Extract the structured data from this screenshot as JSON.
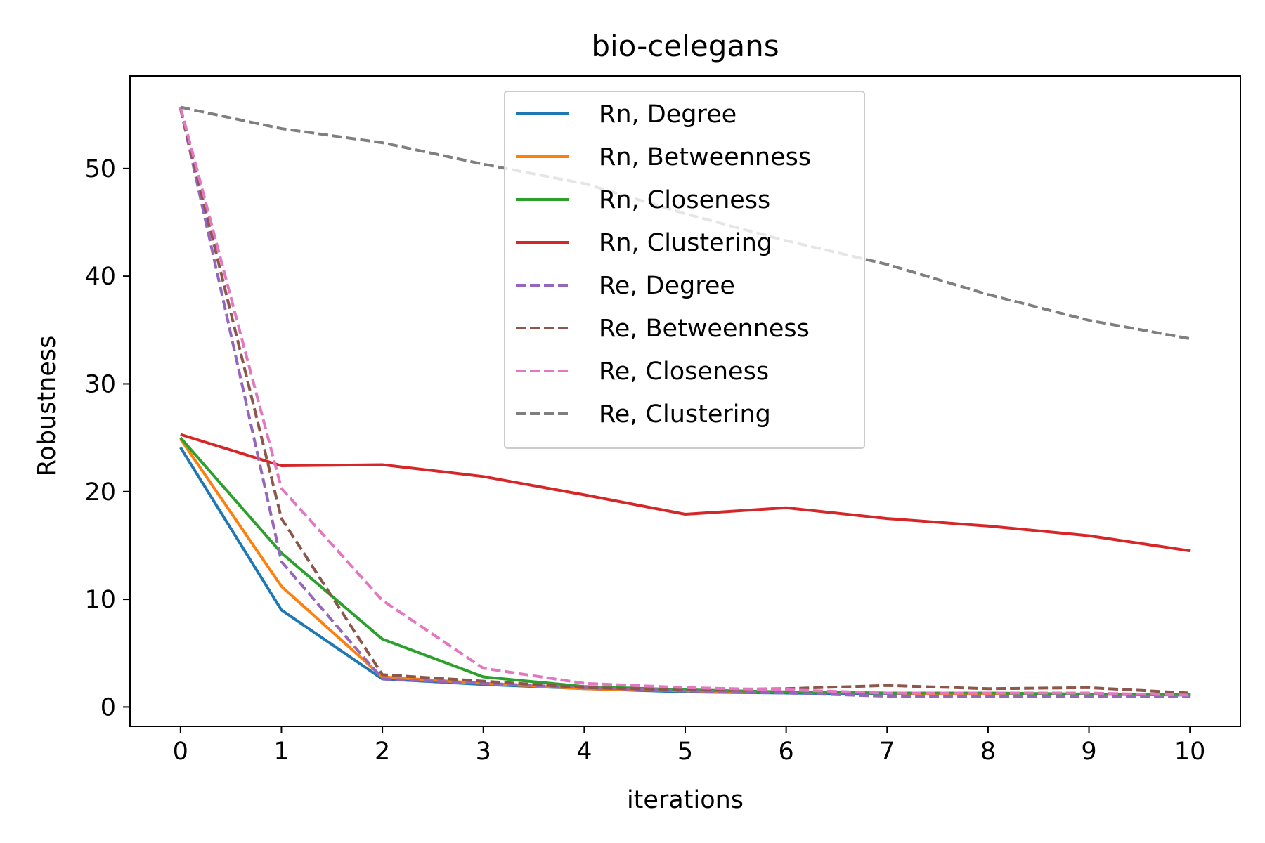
{
  "chart_data": {
    "type": "line",
    "title": "bio-celegans",
    "xlabel": "iterations",
    "ylabel": "Robustness",
    "x": [
      0,
      1,
      2,
      3,
      4,
      5,
      6,
      7,
      8,
      9,
      10
    ],
    "xticks": [
      "0",
      "1",
      "2",
      "3",
      "4",
      "5",
      "6",
      "7",
      "8",
      "9",
      "10"
    ],
    "yticks": [
      "0",
      "10",
      "20",
      "30",
      "40",
      "50"
    ],
    "ytick_values": [
      0,
      10,
      20,
      30,
      40,
      50
    ],
    "xlim": [
      -0.5,
      10.5
    ],
    "ylim": [
      -1.8,
      58.6
    ],
    "grid": false,
    "legend_position": "top-center",
    "series": [
      {
        "name": "Rn, Degree",
        "color": "#1f77b4",
        "dash": "solid",
        "values": [
          24.1,
          9.0,
          2.6,
          2.1,
          1.7,
          1.4,
          1.3,
          1.2,
          1.2,
          1.2,
          1.1
        ]
      },
      {
        "name": "Rn, Betweenness",
        "color": "#ff7f0e",
        "dash": "solid",
        "values": [
          24.9,
          11.2,
          2.8,
          2.2,
          1.7,
          1.5,
          1.4,
          1.3,
          1.2,
          1.2,
          1.2
        ]
      },
      {
        "name": "Rn, Closeness",
        "color": "#2ca02c",
        "dash": "solid",
        "values": [
          25.0,
          14.3,
          6.3,
          2.8,
          1.9,
          1.6,
          1.4,
          1.3,
          1.3,
          1.2,
          1.2
        ]
      },
      {
        "name": "Rn, Clustering",
        "color": "#d62728",
        "dash": "solid",
        "values": [
          25.3,
          22.4,
          22.5,
          21.4,
          19.7,
          17.9,
          18.5,
          17.5,
          16.8,
          15.9,
          14.5
        ]
      },
      {
        "name": "Re, Degree",
        "color": "#9467bd",
        "dash": "dashed",
        "values": [
          55.6,
          13.5,
          2.6,
          2.2,
          1.8,
          1.5,
          1.3,
          1.0,
          1.0,
          1.0,
          1.0
        ]
      },
      {
        "name": "Re, Betweenness",
        "color": "#8c564b",
        "dash": "dashed",
        "values": [
          55.6,
          17.5,
          3.0,
          2.4,
          1.8,
          1.6,
          1.7,
          2.0,
          1.7,
          1.8,
          1.3
        ]
      },
      {
        "name": "Re, Closeness",
        "color": "#e377c2",
        "dash": "dashed",
        "values": [
          55.7,
          20.3,
          9.9,
          3.6,
          2.2,
          1.8,
          1.6,
          1.3,
          1.3,
          1.3,
          1.1
        ]
      },
      {
        "name": "Re, Clustering",
        "color": "#7f7f7f",
        "dash": "dashed",
        "values": [
          55.7,
          53.7,
          52.4,
          50.4,
          48.6,
          45.8,
          43.3,
          41.1,
          38.3,
          35.9,
          34.2
        ]
      }
    ]
  }
}
